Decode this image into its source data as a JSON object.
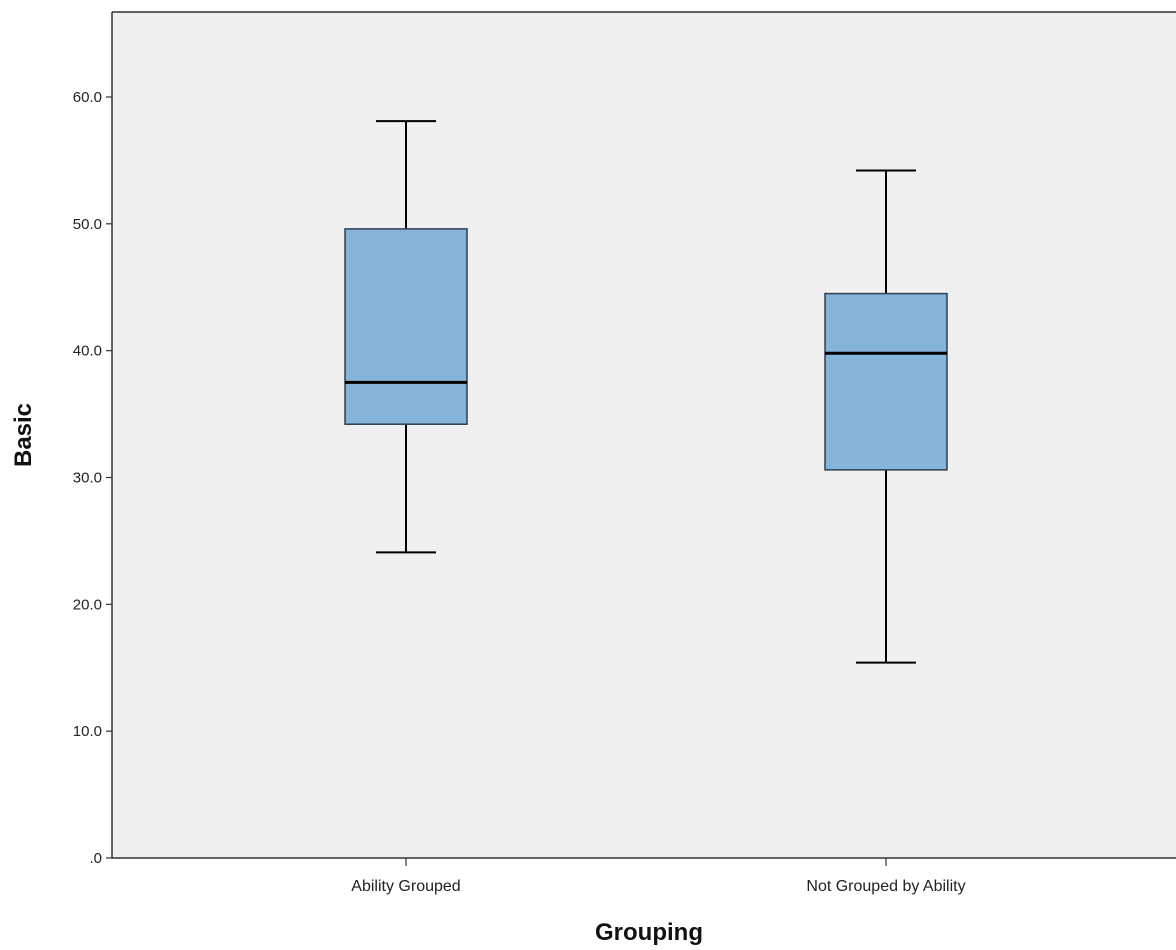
{
  "chart_data": {
    "type": "boxplot",
    "title": "",
    "xlabel": "Grouping",
    "ylabel": "Basic",
    "ylim": [
      0,
      66.7
    ],
    "y_ticks": [
      0,
      10,
      20,
      30,
      40,
      50,
      60
    ],
    "y_tick_labels": [
      ".0",
      "10.0",
      "20.0",
      "30.0",
      "40.0",
      "50.0",
      "60.0"
    ],
    "grid": false,
    "categories": [
      "Ability Grouped",
      "Not Grouped by Ability"
    ],
    "boxes": [
      {
        "category": "Ability Grouped",
        "whisker_low": 24.1,
        "q1": 34.2,
        "median": 37.5,
        "q3": 49.6,
        "whisker_high": 58.1
      },
      {
        "category": "Not Grouped by Ability",
        "whisker_low": 15.4,
        "q1": 30.6,
        "median": 39.8,
        "q3": 44.5,
        "whisker_high": 54.2
      }
    ],
    "colors": {
      "plot_background": "#f0f0f0",
      "box_fill": "#86b3d8",
      "box_stroke": "#2f3f4f",
      "median": "#000000",
      "whisker": "#000000",
      "axis": "#333333"
    }
  }
}
